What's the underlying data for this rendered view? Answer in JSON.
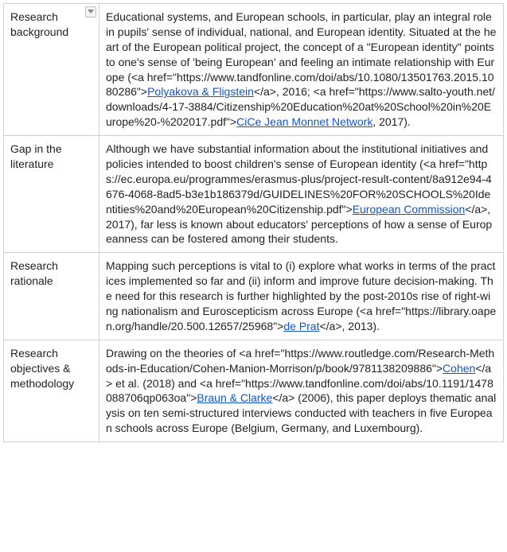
{
  "rows": [
    {
      "label": "Research background",
      "hasDropdown": true,
      "segments": [
        {
          "t": "text",
          "v": "Educational systems, and European schools, in particular, play an integral role in pupils' sense of individual, national, and European identity. Situated at the heart of the European political project, the concept of a \"European identity\" points to one's sense of 'being European' and feeling an intimate relationship with Europe (<a href=\"https://www.tandfonline.com/doi/abs/10.1080/13501763.2015.1080286\">"
        },
        {
          "t": "link",
          "v": "Polyakova & Fligstein"
        },
        {
          "t": "text",
          "v": "</a>, 2016; <a href=\"https://www.salto-youth.net/downloads/4-17-3884/Citizenship%20Education%20at%20School%20in%20Europe%20-%202017.pdf\">"
        },
        {
          "t": "link",
          "v": "CiCe Jean Monnet Network"
        },
        {
          "t": "text",
          "v": ", 2017)."
        }
      ]
    },
    {
      "label": "Gap in the literature",
      "hasDropdown": false,
      "segments": [
        {
          "t": "text",
          "v": "Although we have substantial information about the institutional initiatives and policies intended to boost children's sense of European identity (<a href=\"https://ec.europa.eu/programmes/erasmus-plus/project-result-content/8a912e94-4676-4068-8ad5-b3e1b186379d/GUIDELINES%20FOR%20SCHOOLS%20Identities%20and%20European%20Citizenship.pdf\">"
        },
        {
          "t": "link",
          "v": "European Commission"
        },
        {
          "t": "text",
          "v": "</a>, 2017), far less is known about educators' perceptions of how a sense of Europeanness can be fostered among their students."
        }
      ]
    },
    {
      "label": "Research rationale",
      "hasDropdown": false,
      "segments": [
        {
          "t": "text",
          "v": "Mapping such perceptions is vital to (i) explore what works in terms of the practices implemented so far and (ii) inform and improve future decision-making. The need for this research is further highlighted by the post-2010s rise of right-wing nationalism and Euroscepticism across Europe (<a href=\"https://library.oapen.org/handle/20.500.12657/25968\">"
        },
        {
          "t": "link",
          "v": "de Prat"
        },
        {
          "t": "text",
          "v": "</a>, 2013)."
        }
      ]
    },
    {
      "label": "Research objectives & methodology",
      "hasDropdown": false,
      "segments": [
        {
          "t": "text",
          "v": "Drawing on the theories of <a href=\"https://www.routledge.com/Research-Methods-in-Education/Cohen-Manion-Morrison/p/book/9781138209886\">"
        },
        {
          "t": "link",
          "v": "Cohen"
        },
        {
          "t": "text",
          "v": "</a> et al. (2018) and <a href=\"https://www.tandfonline.com/doi/abs/10.1191/1478088706qp063oa\">"
        },
        {
          "t": "link",
          "v": "Braun & Clarke"
        },
        {
          "t": "text",
          "v": "</a> (2006), this paper deploys thematic analysis on ten semi-structured interviews conducted with teachers in five European schools across Europe (Belgium, Germany, and Luxembourg)."
        }
      ]
    }
  ]
}
